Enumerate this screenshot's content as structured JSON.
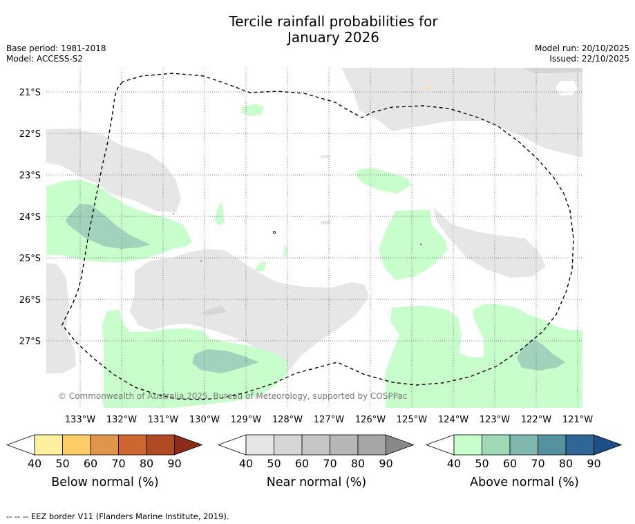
{
  "title_line1": "Tercile rainfall probabilities for",
  "title_line2": "January 2026",
  "meta": {
    "base_period": "Base period: 1981-2018",
    "model": "Model: ACCESS-S2",
    "model_run": "Model run: 20/10/2025",
    "issued": "Issued: 22/10/2025"
  },
  "axes": {
    "lat_labels": [
      "21°S",
      "22°S",
      "23°S",
      "24°S",
      "25°S",
      "26°S",
      "27°S"
    ],
    "lon_labels": [
      "133°W",
      "132°W",
      "131°W",
      "130°W",
      "129°W",
      "128°W",
      "127°W",
      "126°W",
      "125°W",
      "124°W",
      "123°W",
      "122°W",
      "121°W"
    ]
  },
  "copyright": "© Commonwealth of Australia 2025, Bureau of Meteorology, supported by COSPPac",
  "colorbars": [
    {
      "label": "Below normal (%)",
      "ticks": [
        "40",
        "50",
        "60",
        "70",
        "80",
        "90"
      ],
      "colors": [
        "#ffffff",
        "#fff0a0",
        "#fdcc66",
        "#e0964a",
        "#cd6631",
        "#b04a24",
        "#8b2c1a"
      ]
    },
    {
      "label": "Near normal (%)",
      "ticks": [
        "40",
        "50",
        "60",
        "70",
        "80",
        "90"
      ],
      "colors": [
        "#ffffff",
        "#e6e6e6",
        "#d6d6d6",
        "#c6c6c6",
        "#b6b6b6",
        "#a6a6a6",
        "#888888"
      ]
    },
    {
      "label": "Above normal (%)",
      "ticks": [
        "40",
        "50",
        "60",
        "70",
        "80",
        "90"
      ],
      "colors": [
        "#ffffff",
        "#c8fecc",
        "#a0d9b8",
        "#80b8b0",
        "#5691a0",
        "#2f6696",
        "#1d4e86"
      ]
    }
  ],
  "colors": {
    "near_normal_fill": "#e6e6e6",
    "above_normal_fill": "#c8fecc",
    "above_normal_strong": "#a0d2bc",
    "below_normal_fill": "#ffe199"
  },
  "footer": "--  --  -- EEZ border V11 (Flanders Marine Institute, 2019)."
}
